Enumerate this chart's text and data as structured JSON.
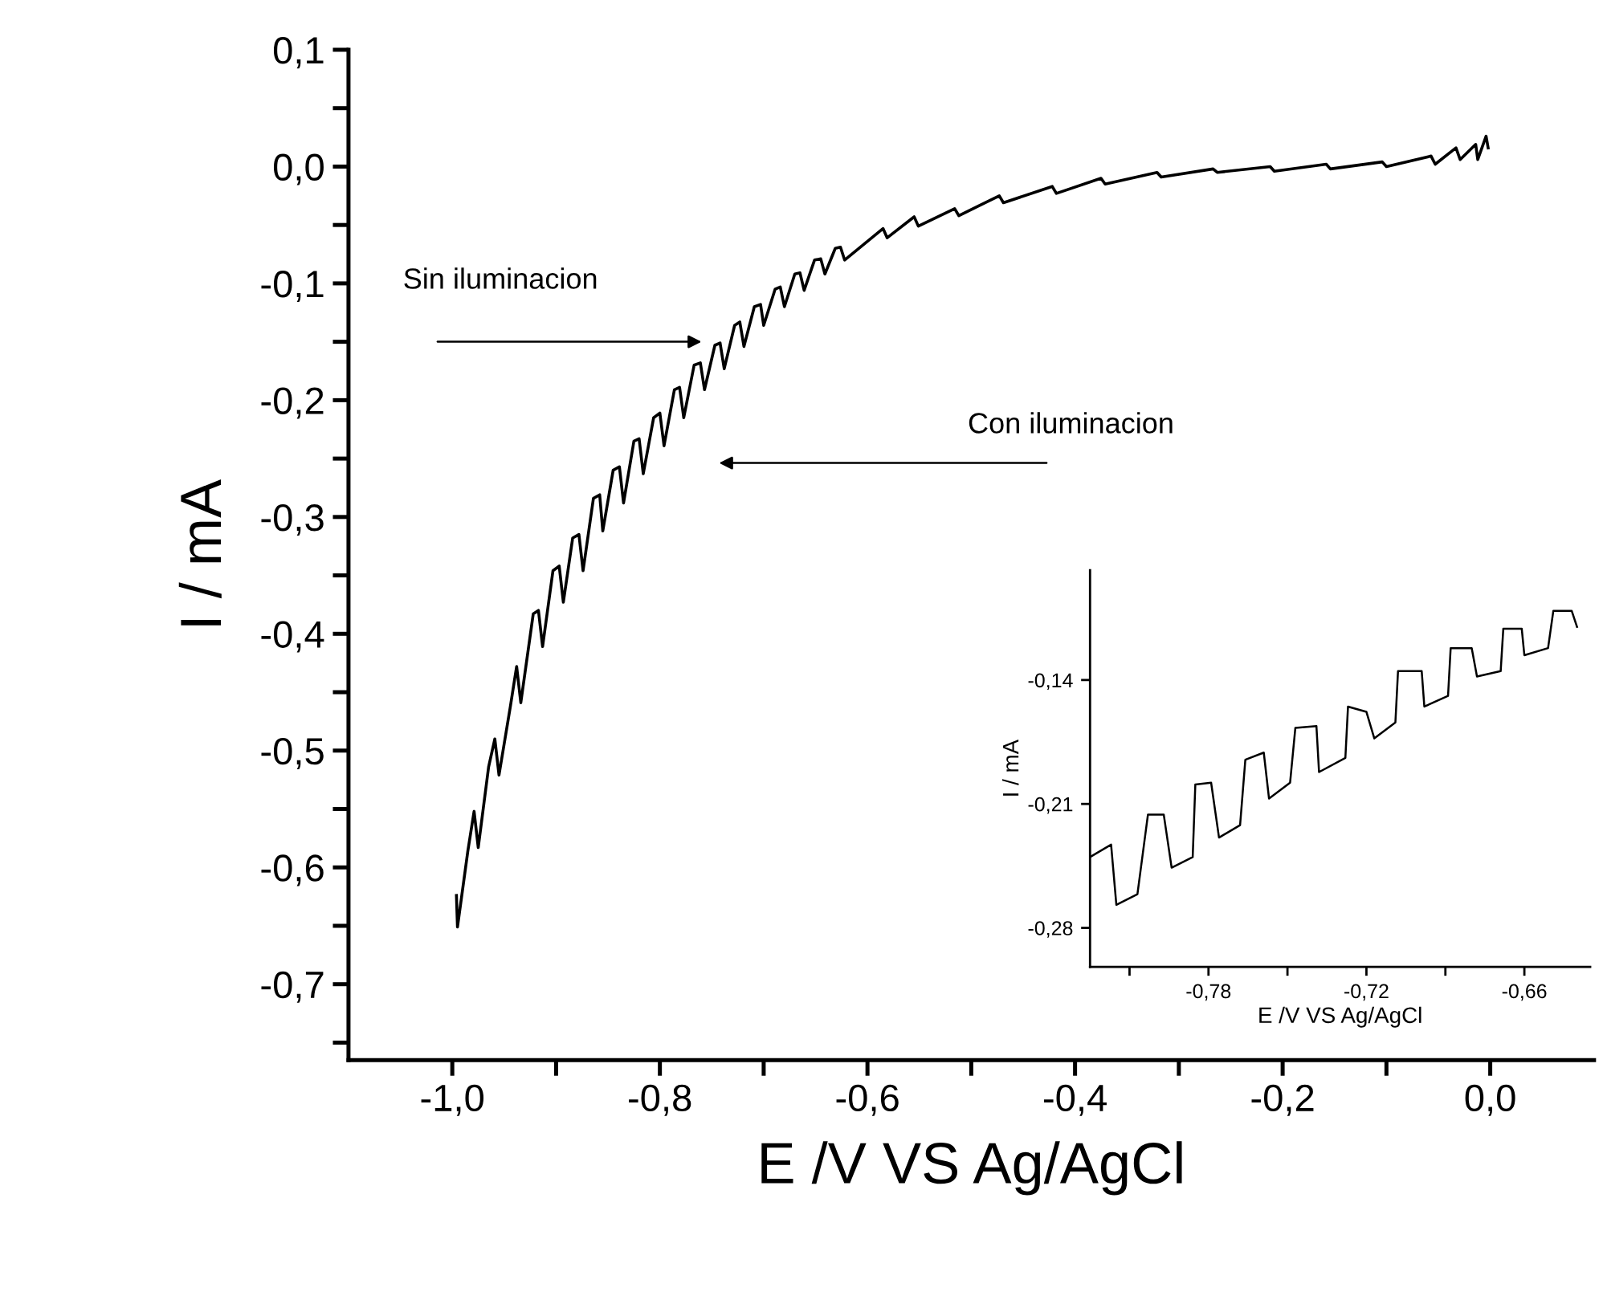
{
  "chart_data": [
    {
      "type": "line",
      "xlabel": "E /V VS Ag/AgCl",
      "ylabel": "I / mA",
      "xlim": [
        -1.1,
        0.1
      ],
      "ylim": [
        -0.765,
        0.1
      ],
      "xticks": [
        {
          "value": -1.0,
          "label": "-1,0"
        },
        {
          "value": -0.9,
          "label": null
        },
        {
          "value": -0.8,
          "label": "-0,8"
        },
        {
          "value": -0.7,
          "label": null
        },
        {
          "value": -0.6,
          "label": "-0,6"
        },
        {
          "value": -0.5,
          "label": null
        },
        {
          "value": -0.4,
          "label": "-0,4"
        },
        {
          "value": -0.3,
          "label": null
        },
        {
          "value": -0.2,
          "label": "-0,2"
        },
        {
          "value": -0.1,
          "label": null
        },
        {
          "value": 0.0,
          "label": "0,0"
        }
      ],
      "yticks": [
        {
          "value": 0.1,
          "label": "0,1"
        },
        {
          "value": 0.05,
          "label": null
        },
        {
          "value": 0.0,
          "label": "0,0"
        },
        {
          "value": -0.05,
          "label": null
        },
        {
          "value": -0.1,
          "label": "-0,1"
        },
        {
          "value": -0.15,
          "label": null
        },
        {
          "value": -0.2,
          "label": "-0,2"
        },
        {
          "value": -0.25,
          "label": null
        },
        {
          "value": -0.3,
          "label": "-0,3"
        },
        {
          "value": -0.35,
          "label": null
        },
        {
          "value": -0.4,
          "label": "-0,4"
        },
        {
          "value": -0.45,
          "label": null
        },
        {
          "value": -0.5,
          "label": "-0,5"
        },
        {
          "value": -0.55,
          "label": null
        },
        {
          "value": -0.6,
          "label": "-0,6"
        },
        {
          "value": -0.65,
          "label": null
        },
        {
          "value": -0.7,
          "label": "-0,7"
        },
        {
          "value": -0.75,
          "label": null
        }
      ],
      "grid": false,
      "legend": false,
      "marker": "none",
      "line_style": "solid",
      "annotations": [
        "Sin iluminacion",
        "Con iluminacion"
      ],
      "series": [
        {
          "color": "#000000",
          "x": [
            -0.996,
            -0.995,
            -0.985,
            -0.979,
            -0.975,
            -0.965,
            -0.959,
            -0.955,
            -0.944,
            -0.938,
            -0.934,
            -0.922,
            -0.917,
            -0.913,
            -0.903,
            -0.897,
            -0.893,
            -0.884,
            -0.878,
            -0.874,
            -0.864,
            -0.858,
            -0.855,
            -0.845,
            -0.839,
            -0.835,
            -0.825,
            -0.82,
            -0.816,
            -0.806,
            -0.8,
            -0.796,
            -0.786,
            -0.781,
            -0.777,
            -0.767,
            -0.761,
            -0.757,
            -0.747,
            -0.742,
            -0.738,
            -0.728,
            -0.723,
            -0.719,
            -0.709,
            -0.703,
            -0.7,
            -0.689,
            -0.684,
            -0.68,
            -0.67,
            -0.665,
            -0.661,
            -0.651,
            -0.645,
            -0.641,
            -0.631,
            -0.626,
            -0.622,
            -0.585,
            -0.581,
            -0.555,
            -0.551,
            -0.516,
            -0.512,
            -0.473,
            -0.469,
            -0.422,
            -0.418,
            -0.375,
            -0.371,
            -0.321,
            -0.317,
            -0.267,
            -0.263,
            -0.212,
            -0.208,
            -0.158,
            -0.154,
            -0.104,
            -0.1,
            -0.057,
            -0.053,
            -0.033,
            -0.029,
            -0.014,
            -0.012,
            -0.004,
            -0.002
          ],
          "values": [
            -0.624,
            -0.651,
            -0.586,
            -0.552,
            -0.583,
            -0.514,
            -0.49,
            -0.521,
            -0.462,
            -0.428,
            -0.459,
            -0.383,
            -0.38,
            -0.411,
            -0.346,
            -0.342,
            -0.373,
            -0.318,
            -0.315,
            -0.346,
            -0.284,
            -0.281,
            -0.312,
            -0.26,
            -0.257,
            -0.288,
            -0.235,
            -0.233,
            -0.263,
            -0.215,
            -0.211,
            -0.239,
            -0.191,
            -0.189,
            -0.215,
            -0.17,
            -0.168,
            -0.191,
            -0.153,
            -0.151,
            -0.173,
            -0.136,
            -0.133,
            -0.154,
            -0.12,
            -0.118,
            -0.136,
            -0.105,
            -0.103,
            -0.12,
            -0.092,
            -0.091,
            -0.106,
            -0.08,
            -0.079,
            -0.092,
            -0.07,
            -0.069,
            -0.08,
            -0.053,
            -0.061,
            -0.043,
            -0.051,
            -0.036,
            -0.042,
            -0.025,
            -0.031,
            -0.017,
            -0.023,
            -0.01,
            -0.015,
            -0.005,
            -0.009,
            -0.002,
            -0.005,
            0.0,
            -0.004,
            0.002,
            -0.002,
            0.004,
            0.0,
            0.009,
            0.002,
            0.016,
            0.006,
            0.019,
            0.006,
            0.026,
            0.016
          ]
        }
      ]
    },
    {
      "type": "line",
      "xlabel": "E /V VS Ag/AgCl",
      "ylabel": "I / mA",
      "xlim": [
        -0.825,
        -0.635
      ],
      "ylim": [
        -0.302,
        -0.078
      ],
      "xticks": [
        {
          "value": -0.81,
          "label": null
        },
        {
          "value": -0.78,
          "label": "-0,78"
        },
        {
          "value": -0.75,
          "label": null
        },
        {
          "value": -0.72,
          "label": "-0,72"
        },
        {
          "value": -0.69,
          "label": null
        },
        {
          "value": -0.66,
          "label": "-0,66"
        }
      ],
      "yticks": [
        {
          "value": -0.28,
          "label": "-0,28"
        },
        {
          "value": -0.21,
          "label": "-0,21"
        },
        {
          "value": -0.14,
          "label": "-0,14"
        }
      ],
      "grid": false,
      "legend": false,
      "marker": "none",
      "line_style": "solid",
      "series": [
        {
          "color": "#000000",
          "x": [
            -0.825,
            -0.817,
            -0.815,
            -0.807,
            -0.803,
            -0.797,
            -0.794,
            -0.786,
            -0.785,
            -0.779,
            -0.776,
            -0.768,
            -0.766,
            -0.759,
            -0.757,
            -0.749,
            -0.747,
            -0.739,
            -0.738,
            -0.728,
            -0.727,
            -0.72,
            -0.717,
            -0.709,
            -0.708,
            -0.699,
            -0.698,
            -0.689,
            -0.688,
            -0.68,
            -0.678,
            -0.669,
            -0.668,
            -0.661,
            -0.66,
            -0.651,
            -0.649,
            -0.642,
            -0.64
          ],
          "values": [
            -0.24,
            -0.233,
            -0.267,
            -0.261,
            -0.216,
            -0.216,
            -0.246,
            -0.24,
            -0.199,
            -0.198,
            -0.229,
            -0.222,
            -0.185,
            -0.181,
            -0.207,
            -0.198,
            -0.167,
            -0.166,
            -0.192,
            -0.184,
            -0.155,
            -0.158,
            -0.173,
            -0.164,
            -0.135,
            -0.135,
            -0.155,
            -0.149,
            -0.122,
            -0.122,
            -0.138,
            -0.135,
            -0.111,
            -0.111,
            -0.126,
            -0.122,
            -0.101,
            -0.101,
            -0.11
          ]
        }
      ]
    }
  ]
}
